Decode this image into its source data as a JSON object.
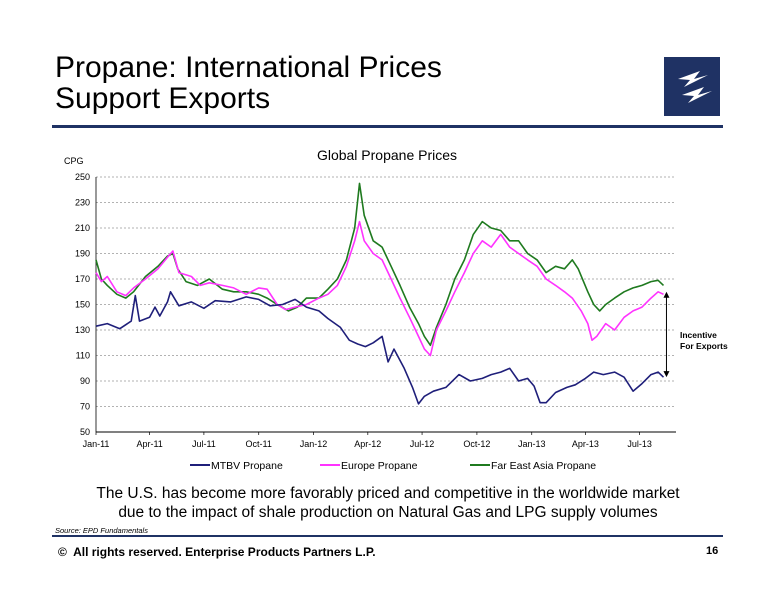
{
  "slide": {
    "title_line1": "Propane:  International Prices",
    "title_line2": "Support Exports",
    "caption_line1": "The U.S. has become more favorably priced and competitive in the worldwide market",
    "caption_line2": "due to the impact of shale production on Natural Gas and LPG supply volumes",
    "source": "Source:  EPD Fundamentals",
    "footer": "All rights reserved. Enterprise Products Partners L.P.",
    "copyright_symbol": "©",
    "page_number": "16",
    "brand_color": "#1f3264",
    "logo_icon": "lightning-bolt-icon"
  },
  "chart_data": {
    "type": "line",
    "title": "Global Propane Prices",
    "ylabel": "CPG",
    "ylim": [
      50,
      250
    ],
    "yticks": [
      "250",
      "230",
      "210",
      "190",
      "170",
      "150",
      "130",
      "110",
      "90",
      "70",
      "50"
    ],
    "xlim": [
      "2011-01-01",
      "2013-08-31"
    ],
    "xticks": [
      {
        "label": "Jan-11",
        "date": "2011-01-01"
      },
      {
        "label": "Apr-11",
        "date": "2011-04-01"
      },
      {
        "label": "Jul-11",
        "date": "2011-07-01"
      },
      {
        "label": "Oct-11",
        "date": "2011-10-01"
      },
      {
        "label": "Jan-12",
        "date": "2012-01-01"
      },
      {
        "label": "Apr-12",
        "date": "2012-04-01"
      },
      {
        "label": "Jul-12",
        "date": "2012-07-01"
      },
      {
        "label": "Oct-12",
        "date": "2012-10-01"
      },
      {
        "label": "Jan-13",
        "date": "2013-01-01"
      },
      {
        "label": "Apr-13",
        "date": "2013-04-01"
      },
      {
        "label": "Jul-13",
        "date": "2013-07-01"
      }
    ],
    "grid": "horizontal dashed",
    "legend_position": "bottom",
    "annotation": {
      "text_line1": "Incentive",
      "text_line2": "For Exports",
      "from_value": 93,
      "to_value": 160,
      "date": "2013-08-15"
    },
    "series": [
      {
        "name": "MTBV Propane",
        "color": "#1f1f7a",
        "points": [
          [
            "2011-01-01",
            133
          ],
          [
            "2011-01-20",
            135
          ],
          [
            "2011-02-10",
            131
          ],
          [
            "2011-03-01",
            137
          ],
          [
            "2011-03-08",
            157
          ],
          [
            "2011-03-15",
            137
          ],
          [
            "2011-04-01",
            140
          ],
          [
            "2011-04-10",
            148
          ],
          [
            "2011-04-18",
            141
          ],
          [
            "2011-05-01",
            152
          ],
          [
            "2011-05-06",
            160
          ],
          [
            "2011-05-20",
            149
          ],
          [
            "2011-06-10",
            152
          ],
          [
            "2011-07-01",
            147
          ],
          [
            "2011-07-20",
            153
          ],
          [
            "2011-08-15",
            152
          ],
          [
            "2011-09-10",
            156
          ],
          [
            "2011-10-01",
            154
          ],
          [
            "2011-10-20",
            149
          ],
          [
            "2011-11-10",
            150
          ],
          [
            "2011-12-01",
            154
          ],
          [
            "2011-12-20",
            148
          ],
          [
            "2012-01-10",
            145
          ],
          [
            "2012-01-25",
            139
          ],
          [
            "2012-02-15",
            132
          ],
          [
            "2012-03-01",
            122
          ],
          [
            "2012-03-15",
            119
          ],
          [
            "2012-03-28",
            117
          ],
          [
            "2012-04-10",
            120
          ],
          [
            "2012-04-25",
            125
          ],
          [
            "2012-05-05",
            105
          ],
          [
            "2012-05-15",
            115
          ],
          [
            "2012-06-01",
            100
          ],
          [
            "2012-06-15",
            85
          ],
          [
            "2012-06-25",
            72
          ],
          [
            "2012-07-05",
            78
          ],
          [
            "2012-07-20",
            82
          ],
          [
            "2012-08-10",
            85
          ],
          [
            "2012-09-01",
            95
          ],
          [
            "2012-09-20",
            90
          ],
          [
            "2012-10-10",
            92
          ],
          [
            "2012-10-25",
            95
          ],
          [
            "2012-11-10",
            97
          ],
          [
            "2012-11-25",
            100
          ],
          [
            "2012-12-10",
            90
          ],
          [
            "2012-12-25",
            92
          ],
          [
            "2013-01-05",
            86
          ],
          [
            "2013-01-15",
            73
          ],
          [
            "2013-01-25",
            73
          ],
          [
            "2013-02-10",
            81
          ],
          [
            "2013-03-01",
            85
          ],
          [
            "2013-03-15",
            87
          ],
          [
            "2013-04-01",
            92
          ],
          [
            "2013-04-15",
            97
          ],
          [
            "2013-05-01",
            95
          ],
          [
            "2013-05-20",
            97
          ],
          [
            "2013-06-05",
            93
          ],
          [
            "2013-06-20",
            82
          ],
          [
            "2013-07-05",
            88
          ],
          [
            "2013-07-20",
            95
          ],
          [
            "2013-08-01",
            97
          ],
          [
            "2013-08-10",
            93
          ]
        ]
      },
      {
        "name": "Europe Propane",
        "color": "#ff33ff",
        "points": [
          [
            "2011-01-01",
            175
          ],
          [
            "2011-01-10",
            168
          ],
          [
            "2011-01-20",
            172
          ],
          [
            "2011-02-05",
            160
          ],
          [
            "2011-02-20",
            157
          ],
          [
            "2011-03-05",
            163
          ],
          [
            "2011-03-25",
            170
          ],
          [
            "2011-04-15",
            178
          ],
          [
            "2011-05-01",
            187
          ],
          [
            "2011-05-10",
            192
          ],
          [
            "2011-05-20",
            175
          ],
          [
            "2011-06-10",
            172
          ],
          [
            "2011-06-25",
            165
          ],
          [
            "2011-07-10",
            167
          ],
          [
            "2011-08-01",
            165
          ],
          [
            "2011-08-20",
            163
          ],
          [
            "2011-09-10",
            158
          ],
          [
            "2011-10-01",
            163
          ],
          [
            "2011-10-15",
            162
          ],
          [
            "2011-11-01",
            150
          ],
          [
            "2011-11-15",
            146
          ],
          [
            "2011-12-01",
            148
          ],
          [
            "2011-12-20",
            150
          ],
          [
            "2012-01-10",
            155
          ],
          [
            "2012-01-25",
            158
          ],
          [
            "2012-02-10",
            165
          ],
          [
            "2012-02-25",
            180
          ],
          [
            "2012-03-10",
            200
          ],
          [
            "2012-03-18",
            215
          ],
          [
            "2012-03-26",
            200
          ],
          [
            "2012-04-10",
            190
          ],
          [
            "2012-04-25",
            185
          ],
          [
            "2012-05-10",
            170
          ],
          [
            "2012-05-25",
            155
          ],
          [
            "2012-06-10",
            140
          ],
          [
            "2012-06-25",
            125
          ],
          [
            "2012-07-05",
            115
          ],
          [
            "2012-07-15",
            110
          ],
          [
            "2012-07-25",
            130
          ],
          [
            "2012-08-10",
            145
          ],
          [
            "2012-08-25",
            160
          ],
          [
            "2012-09-10",
            175
          ],
          [
            "2012-09-25",
            190
          ],
          [
            "2012-10-10",
            200
          ],
          [
            "2012-10-25",
            195
          ],
          [
            "2012-11-10",
            205
          ],
          [
            "2012-11-25",
            195
          ],
          [
            "2012-12-10",
            190
          ],
          [
            "2012-12-25",
            185
          ],
          [
            "2013-01-10",
            180
          ],
          [
            "2013-01-25",
            170
          ],
          [
            "2013-02-10",
            165
          ],
          [
            "2013-02-25",
            160
          ],
          [
            "2013-03-10",
            155
          ],
          [
            "2013-03-25",
            145
          ],
          [
            "2013-04-05",
            135
          ],
          [
            "2013-04-12",
            122
          ],
          [
            "2013-04-20",
            125
          ],
          [
            "2013-05-05",
            135
          ],
          [
            "2013-05-20",
            130
          ],
          [
            "2013-06-05",
            140
          ],
          [
            "2013-06-20",
            145
          ],
          [
            "2013-07-05",
            148
          ],
          [
            "2013-07-20",
            155
          ],
          [
            "2013-08-01",
            160
          ],
          [
            "2013-08-10",
            158
          ]
        ]
      },
      {
        "name": "Far East Asia Propane",
        "color": "#1f7a1f",
        "points": [
          [
            "2011-01-01",
            185
          ],
          [
            "2011-01-10",
            170
          ],
          [
            "2011-01-20",
            165
          ],
          [
            "2011-02-05",
            158
          ],
          [
            "2011-02-20",
            155
          ],
          [
            "2011-03-05",
            160
          ],
          [
            "2011-03-25",
            172
          ],
          [
            "2011-04-15",
            180
          ],
          [
            "2011-05-01",
            188
          ],
          [
            "2011-05-10",
            190
          ],
          [
            "2011-05-18",
            178
          ],
          [
            "2011-06-01",
            168
          ],
          [
            "2011-06-20",
            165
          ],
          [
            "2011-07-10",
            170
          ],
          [
            "2011-08-01",
            162
          ],
          [
            "2011-08-20",
            160
          ],
          [
            "2011-09-10",
            160
          ],
          [
            "2011-10-01",
            158
          ],
          [
            "2011-10-15",
            155
          ],
          [
            "2011-11-01",
            150
          ],
          [
            "2011-11-20",
            145
          ],
          [
            "2011-12-05",
            148
          ],
          [
            "2011-12-20",
            155
          ],
          [
            "2012-01-10",
            155
          ],
          [
            "2012-01-25",
            162
          ],
          [
            "2012-02-10",
            170
          ],
          [
            "2012-02-25",
            185
          ],
          [
            "2012-03-10",
            210
          ],
          [
            "2012-03-18",
            245
          ],
          [
            "2012-03-26",
            220
          ],
          [
            "2012-04-10",
            200
          ],
          [
            "2012-04-25",
            195
          ],
          [
            "2012-05-10",
            180
          ],
          [
            "2012-05-25",
            165
          ],
          [
            "2012-06-10",
            148
          ],
          [
            "2012-06-25",
            135
          ],
          [
            "2012-07-05",
            125
          ],
          [
            "2012-07-15",
            118
          ],
          [
            "2012-07-25",
            132
          ],
          [
            "2012-08-10",
            150
          ],
          [
            "2012-08-25",
            170
          ],
          [
            "2012-09-10",
            185
          ],
          [
            "2012-09-25",
            205
          ],
          [
            "2012-10-10",
            215
          ],
          [
            "2012-10-25",
            210
          ],
          [
            "2012-11-10",
            208
          ],
          [
            "2012-11-25",
            200
          ],
          [
            "2012-12-10",
            200
          ],
          [
            "2012-12-25",
            190
          ],
          [
            "2013-01-10",
            185
          ],
          [
            "2013-01-25",
            175
          ],
          [
            "2013-02-10",
            180
          ],
          [
            "2013-02-25",
            178
          ],
          [
            "2013-03-10",
            185
          ],
          [
            "2013-03-20",
            178
          ],
          [
            "2013-04-05",
            160
          ],
          [
            "2013-04-15",
            150
          ],
          [
            "2013-04-25",
            145
          ],
          [
            "2013-05-05",
            150
          ],
          [
            "2013-05-20",
            155
          ],
          [
            "2013-06-05",
            160
          ],
          [
            "2013-06-20",
            163
          ],
          [
            "2013-07-05",
            165
          ],
          [
            "2013-07-20",
            168
          ],
          [
            "2013-08-01",
            169
          ],
          [
            "2013-08-10",
            165
          ]
        ]
      }
    ]
  }
}
